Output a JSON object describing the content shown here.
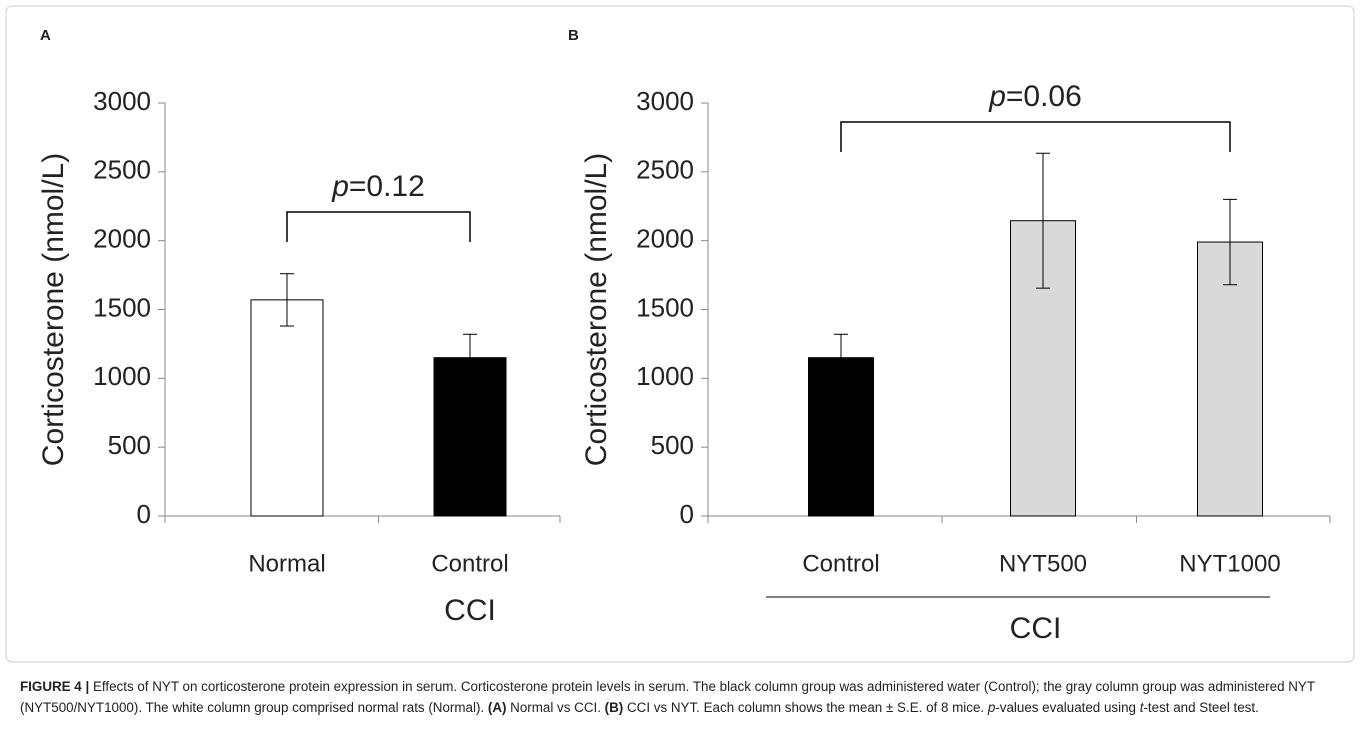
{
  "chart_data": [
    {
      "type": "bar",
      "panel": "A",
      "y_label": "Corticosterone (nmol/L)",
      "categories": [
        "Normal",
        "Control"
      ],
      "values": [
        1570,
        1150
      ],
      "errors": [
        190,
        170
      ],
      "colors": [
        "#ffffff",
        "#000000"
      ],
      "group_label": "CCI",
      "annotation": [
        "p",
        "=0.12"
      ],
      "ylim": [
        0,
        3000
      ],
      "yticks": [
        0,
        500,
        1000,
        1500,
        2000,
        2500,
        3000
      ]
    },
    {
      "type": "bar",
      "panel": "B",
      "y_label": "Corticosterone (nmol/L)",
      "categories": [
        "Control",
        "NYT500",
        "NYT1000"
      ],
      "values": [
        1150,
        2145,
        1990
      ],
      "errors": [
        170,
        490,
        310
      ],
      "colors": [
        "#000000",
        "#d9d9d9",
        "#d9d9d9"
      ],
      "group_label": "CCI",
      "annotation": [
        "p",
        "=0.06"
      ],
      "ylim": [
        0,
        3000
      ],
      "yticks": [
        0,
        500,
        1000,
        1500,
        2000,
        2500,
        3000
      ]
    }
  ],
  "caption": [
    "FIGURE 4 |",
    " Effects of NYT on corticosterone protein expression in serum. Corticosterone protein levels in serum. The black column group was administered water (Control); the gray column group was administered NYT (NYT500/NYT1000). The white column group comprised normal rats (Normal). ",
    "(A)",
    " Normal vs CCI. ",
    "(B)",
    " CCI vs NYT. Each column shows the mean ± S.E. of 8 mice. ",
    "p",
    "-values evaluated using ",
    "t",
    "-test and Steel test."
  ]
}
